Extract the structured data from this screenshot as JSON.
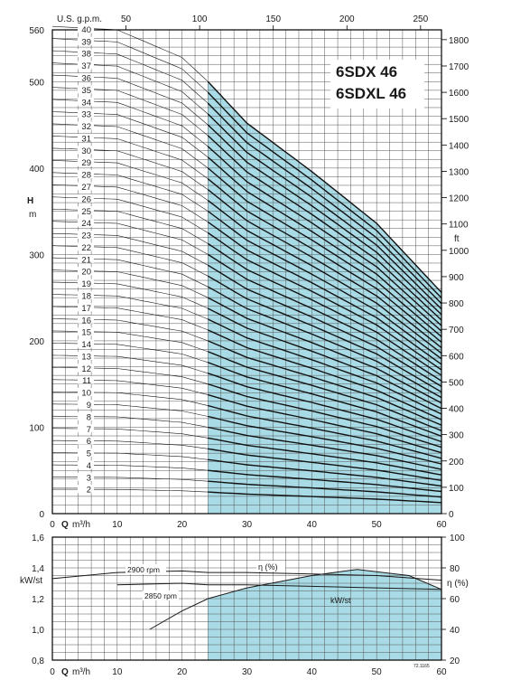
{
  "chart_data": [
    {
      "type": "line",
      "title_lines": [
        "6SDX 46",
        "6SDXL 46"
      ],
      "top_axis": {
        "label": "U.S. g.p.m.",
        "ticks": [
          50,
          100,
          150,
          200,
          250
        ]
      },
      "x": {
        "label_bold": "Q",
        "label_unit": "m³/h",
        "ticks": [
          0,
          10,
          20,
          30,
          40,
          50,
          60
        ],
        "range": [
          0,
          60
        ]
      },
      "y_left": {
        "label": "H",
        "unit": "m",
        "ticks": [
          0,
          100,
          200,
          300,
          400,
          500,
          560
        ],
        "range": [
          0,
          560
        ]
      },
      "y_right": {
        "label": "ft",
        "ticks": [
          0,
          100,
          200,
          300,
          400,
          500,
          600,
          700,
          800,
          900,
          1000,
          1100,
          1200,
          1300,
          1400,
          1500,
          1600,
          1700,
          1800
        ]
      },
      "shaded_region_q": [
        24,
        60
      ],
      "shaded_color": "#a9dbe6",
      "per_stage_head_m": {
        "q": [
          0,
          10,
          20,
          24,
          30,
          40,
          50,
          60
        ],
        "h": [
          14.1,
          14.0,
          13.2,
          12.5,
          11.3,
          9.9,
          8.4,
          6.4
        ]
      },
      "stages": [
        2,
        3,
        4,
        5,
        6,
        7,
        8,
        9,
        10,
        11,
        12,
        13,
        14,
        15,
        16,
        17,
        18,
        19,
        20,
        21,
        22,
        23,
        24,
        25,
        26,
        27,
        28,
        29,
        30,
        31,
        32,
        33,
        34,
        35,
        36,
        37,
        38,
        39,
        40
      ]
    },
    {
      "type": "line",
      "x": {
        "label_bold": "Q",
        "label_unit": "m³/h",
        "ticks": [
          0,
          10,
          20,
          30,
          40,
          50,
          60
        ],
        "range": [
          0,
          60
        ]
      },
      "y_left": {
        "label": "kW/st",
        "ticks": [
          "0,8",
          "1,0",
          "1,2",
          "1,4",
          "1,6"
        ],
        "range": [
          0.8,
          1.6
        ]
      },
      "y_right": {
        "label": "η (%)",
        "ticks": [
          20,
          40,
          60,
          80,
          100
        ],
        "range": [
          20,
          100
        ]
      },
      "series": [
        {
          "name": "2900 rpm",
          "x": [
            0,
            10,
            20,
            24,
            30,
            40,
            50,
            60
          ],
          "y": [
            1.33,
            1.37,
            1.38,
            1.37,
            1.37,
            1.36,
            1.35,
            1.32
          ]
        },
        {
          "name": "2850 rpm",
          "x": [
            10,
            20,
            24,
            30,
            40,
            50,
            60
          ],
          "y": [
            1.29,
            1.3,
            1.29,
            1.29,
            1.28,
            1.27,
            1.26
          ]
        },
        {
          "name": "η (%)",
          "x": [
            15,
            20,
            24,
            30,
            40,
            47,
            55,
            60
          ],
          "y": [
            40,
            52,
            60,
            67,
            75,
            79,
            75,
            66
          ]
        }
      ],
      "labels": {
        "rpm_high": "2900 rpm",
        "rpm_low": "2850 rpm",
        "eta": "η (%)",
        "kw": "kW/st"
      },
      "shaded_region_q": [
        24,
        60
      ],
      "shaded_color": "#a9dbe6",
      "code": "72.1165"
    }
  ]
}
